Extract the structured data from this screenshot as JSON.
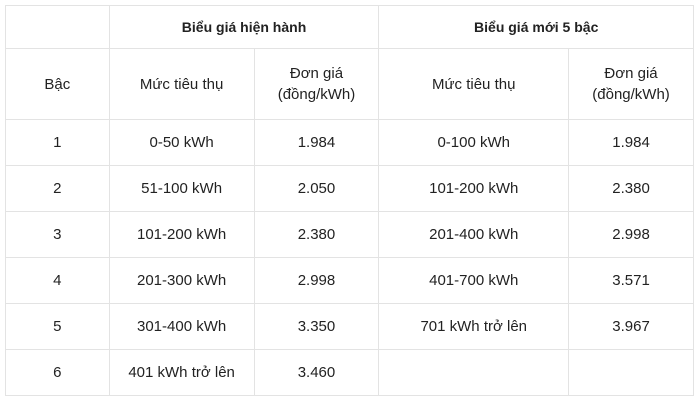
{
  "header": {
    "group_current": "Biểu giá hiện hành",
    "group_new": "Biểu giá mới 5 bậc",
    "col_tier": "Bậc",
    "col_usage_current": "Mức tiêu thụ",
    "col_price_current": "Đơn giá (đồng/kWh)",
    "col_usage_new": "Mức tiêu thụ",
    "col_price_new": "Đơn giá (đồng/kWh)"
  },
  "rows": [
    {
      "tier": "1",
      "usage_current": "0-50 kWh",
      "price_current": "1.984",
      "usage_new": "0-100 kWh",
      "price_new": "1.984"
    },
    {
      "tier": "2",
      "usage_current": "51-100 kWh",
      "price_current": "2.050",
      "usage_new": "101-200 kWh",
      "price_new": "2.380"
    },
    {
      "tier": "3",
      "usage_current": "101-200 kWh",
      "price_current": "2.380",
      "usage_new": "201-400 kWh",
      "price_new": "2.998"
    },
    {
      "tier": "4",
      "usage_current": "201-300 kWh",
      "price_current": "2.998",
      "usage_new": "401-700 kWh",
      "price_new": "3.571"
    },
    {
      "tier": "5",
      "usage_current": "301-400 kWh",
      "price_current": "3.350",
      "usage_new": "701 kWh trở lên",
      "price_new": "3.967"
    },
    {
      "tier": "6",
      "usage_current": "401 kWh trở lên",
      "price_current": "3.460",
      "usage_new": "",
      "price_new": ""
    }
  ]
}
